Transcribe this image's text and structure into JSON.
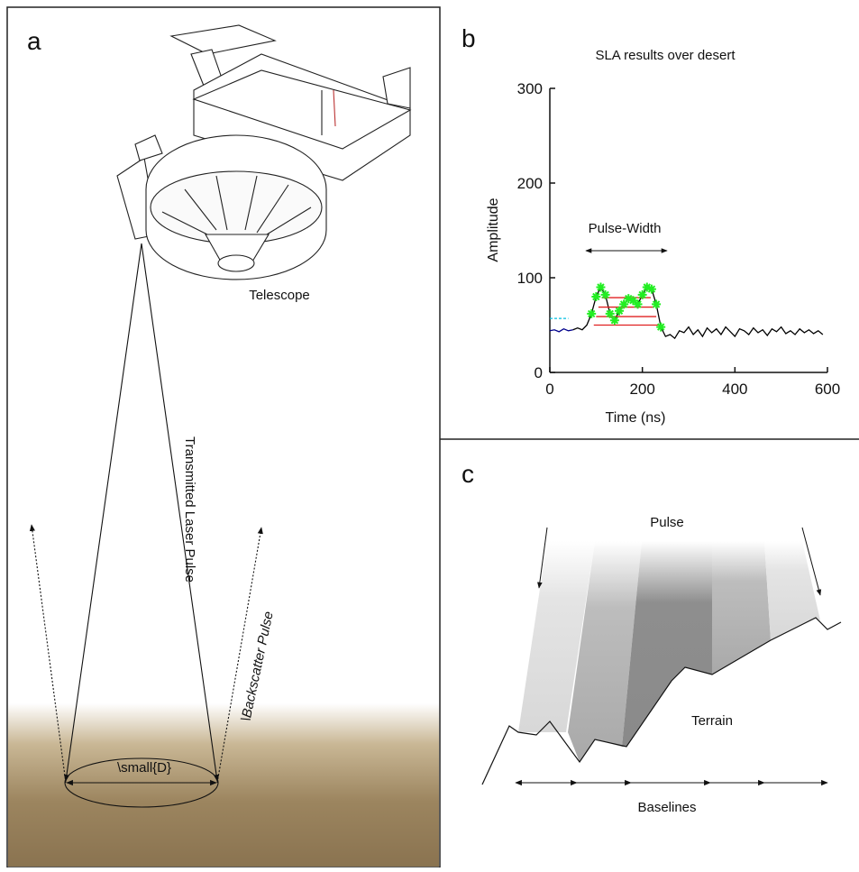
{
  "panels": {
    "a": {
      "label": "a",
      "telescope": "Telescope",
      "transmitted": "Transmitted Laser Pulse",
      "backscatter": "\\Backscatter Pulse",
      "footprint": "\\small{D}"
    },
    "b": {
      "label": "b"
    },
    "c": {
      "label": "c",
      "pulse": "Pulse",
      "terrain": "Terrain",
      "baselines": "Baselines"
    }
  },
  "chart_data": {
    "type": "line",
    "title": "SLA results over desert",
    "x_label": "Time (ns)",
    "y_label": "Amplitude",
    "annotation": "Pulse-Width",
    "xlim": [
      0,
      600
    ],
    "ylim": [
      0,
      300
    ],
    "xticks": [
      0,
      200,
      400,
      600
    ],
    "yticks": [
      0,
      100,
      200,
      300
    ],
    "series": [
      {
        "color": "#00bfe0",
        "dash": true,
        "x": [
          0,
          40
        ],
        "values": [
          57,
          57
        ]
      },
      {
        "color": "#00008b",
        "x": [
          0,
          10,
          20,
          30,
          40,
          50
        ],
        "values": [
          44,
          45,
          43,
          46,
          44,
          45
        ]
      },
      {
        "color": "#000000",
        "x": [
          50,
          60,
          70,
          80,
          90,
          100,
          110,
          120,
          130,
          140,
          150,
          160,
          170,
          180,
          190,
          200,
          210,
          220,
          230,
          240,
          250,
          260,
          270,
          280,
          290,
          300,
          310,
          320,
          330,
          340,
          350,
          360,
          370,
          380,
          390,
          400,
          410,
          420,
          430,
          440,
          450,
          460,
          470,
          480,
          490,
          500,
          510,
          520,
          530,
          540,
          550,
          560,
          570,
          580,
          590
        ],
        "values": [
          45,
          47,
          45,
          50,
          62,
          80,
          90,
          82,
          62,
          55,
          65,
          72,
          78,
          76,
          72,
          82,
          90,
          88,
          72,
          48,
          38,
          40,
          36,
          44,
          42,
          48,
          40,
          45,
          38,
          47,
          42,
          46,
          40,
          48,
          43,
          38,
          46,
          44,
          40,
          47,
          42,
          45,
          39,
          46,
          43,
          48,
          41,
          44,
          40,
          46,
          42,
          45,
          41,
          44,
          40
        ]
      },
      {
        "color": "#e02020",
        "x": [
          95,
          235
        ],
        "values": [
          50,
          50
        ]
      },
      {
        "color": "#e02020",
        "x": [
          100,
          230
        ],
        "values": [
          59,
          59
        ]
      },
      {
        "color": "#e02020",
        "x": [
          105,
          225
        ],
        "values": [
          69,
          69
        ]
      },
      {
        "color": "#e02020",
        "x": [
          112,
          218
        ],
        "values": [
          79,
          79
        ]
      },
      {
        "color": "#22ee22",
        "mode": "markers",
        "x": [
          90,
          100,
          110,
          120,
          130,
          140,
          150,
          160,
          170,
          180,
          190,
          200,
          210,
          220,
          230,
          240
        ],
        "values": [
          62,
          80,
          90,
          82,
          62,
          55,
          65,
          72,
          78,
          76,
          72,
          82,
          90,
          88,
          72,
          48
        ]
      }
    ]
  }
}
